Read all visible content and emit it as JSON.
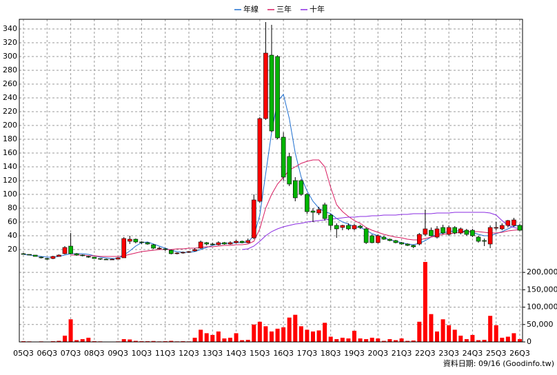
{
  "chart_data": {
    "type": "candlestick",
    "categories": [
      "05Q3",
      null,
      null,
      null,
      "06Q3",
      null,
      null,
      null,
      "07Q3",
      null,
      null,
      null,
      "08Q3",
      null,
      null,
      null,
      "09Q3",
      null,
      null,
      null,
      "10Q3",
      null,
      null,
      null,
      "11Q3",
      null,
      null,
      null,
      "12Q3",
      null,
      null,
      null,
      "13Q3",
      null,
      null,
      null,
      "14Q3",
      null,
      null,
      null,
      "15Q3",
      null,
      null,
      null,
      "16Q3",
      null,
      null,
      null,
      "17Q3",
      null,
      null,
      null,
      "18Q3",
      null,
      null,
      null,
      "19Q3",
      null,
      null,
      null,
      "20Q3",
      null,
      null,
      null,
      "21Q3",
      null,
      null,
      null,
      "22Q3",
      null,
      null,
      null,
      "23Q3",
      null,
      null,
      null,
      "24Q3",
      null,
      null,
      null,
      "25Q3",
      null,
      null,
      null,
      "26Q3"
    ],
    "open": [
      14,
      13,
      12,
      9,
      7,
      7,
      10,
      14,
      25,
      14,
      12,
      10,
      9,
      7,
      6,
      5,
      6,
      8,
      32,
      35,
      31,
      30,
      27,
      22,
      21,
      19,
      14,
      15,
      16,
      18,
      22,
      30,
      28,
      27,
      30,
      28,
      30,
      32,
      30,
      37,
      90,
      210,
      302,
      300,
      183,
      155,
      120,
      120,
      100,
      76,
      73,
      85,
      70,
      55,
      52,
      55,
      50,
      54,
      50,
      40,
      30,
      38,
      35,
      33,
      30,
      28,
      26,
      28,
      42,
      48,
      38,
      52,
      42,
      52,
      44,
      48,
      48,
      38,
      33,
      28,
      52,
      50,
      55,
      55,
      55
    ],
    "high": [
      15,
      13,
      12,
      10,
      8,
      11,
      13,
      25,
      44,
      15,
      13,
      11,
      9,
      7,
      7,
      7,
      9,
      38,
      40,
      36,
      32,
      31,
      28,
      24,
      22,
      20,
      16,
      17,
      18,
      22,
      33,
      31,
      30,
      32,
      31,
      32,
      34,
      33,
      36,
      100,
      212,
      350,
      346,
      302,
      190,
      160,
      125,
      122,
      102,
      80,
      82,
      88,
      72,
      58,
      56,
      58,
      57,
      56,
      52,
      42,
      42,
      40,
      36,
      34,
      31,
      29,
      27,
      44,
      78,
      52,
      54,
      56,
      55,
      54,
      52,
      50,
      50,
      40,
      36,
      55,
      60,
      58,
      63,
      66,
      57
    ],
    "low": [
      13,
      12,
      10,
      7,
      5,
      6,
      10,
      13,
      13,
      11,
      10,
      8,
      7,
      5,
      5,
      5,
      6,
      8,
      28,
      29,
      28,
      27,
      21,
      20,
      18,
      13,
      13,
      14,
      15,
      17,
      21,
      26,
      26,
      26,
      27,
      27,
      29,
      29,
      29,
      35,
      88,
      208,
      190,
      180,
      120,
      112,
      90,
      98,
      72,
      60,
      70,
      62,
      48,
      37,
      48,
      48,
      48,
      50,
      28,
      29,
      29,
      34,
      32,
      29,
      27,
      25,
      22,
      26,
      40,
      39,
      36,
      42,
      40,
      42,
      42,
      40,
      38,
      30,
      25,
      22,
      48,
      48,
      52,
      53,
      47
    ],
    "close": [
      13,
      12,
      10,
      8,
      6,
      10,
      12,
      23,
      14,
      12,
      11,
      9,
      7,
      6,
      5,
      6,
      8,
      36,
      35,
      31,
      30,
      28,
      22,
      22,
      20,
      14,
      15,
      16,
      17,
      20,
      31,
      28,
      27,
      30,
      28,
      30,
      32,
      30,
      33,
      92,
      210,
      305,
      192,
      182,
      125,
      115,
      95,
      100,
      75,
      74,
      78,
      65,
      55,
      50,
      55,
      50,
      55,
      52,
      30,
      30,
      40,
      35,
      33,
      30,
      28,
      26,
      24,
      42,
      50,
      40,
      50,
      44,
      52,
      44,
      50,
      42,
      40,
      32,
      32,
      52,
      52,
      55,
      62,
      63,
      48
    ],
    "up_color": "#ff0000",
    "down_color": "#00b400",
    "series": [
      {
        "name": "年線",
        "color": "#1f6fd0",
        "values": [
          13,
          12,
          11,
          10,
          9,
          9,
          10,
          12,
          14,
          14,
          14,
          13,
          11,
          9,
          8,
          7,
          7,
          12,
          18,
          25,
          30,
          31,
          28,
          25,
          22,
          19,
          17,
          16,
          16,
          17,
          20,
          23,
          26,
          28,
          29,
          29,
          30,
          30,
          31,
          40,
          70,
          130,
          190,
          235,
          245,
          210,
          160,
          125,
          105,
          90,
          80,
          75,
          72,
          65,
          60,
          57,
          53,
          52,
          48,
          43,
          40,
          37,
          34,
          32,
          30,
          28,
          27,
          29,
          33,
          38,
          42,
          44,
          46,
          47,
          47,
          46,
          45,
          42,
          40,
          40,
          43,
          46,
          50,
          54,
          55
        ]
      },
      {
        "name": "三年",
        "color": "#d81b60",
        "values": [
          null,
          null,
          null,
          null,
          null,
          null,
          null,
          null,
          12,
          12,
          12,
          11,
          11,
          10,
          10,
          10,
          10,
          11,
          13,
          15,
          17,
          18,
          19,
          20,
          20,
          20,
          21,
          21,
          22,
          22,
          23,
          24,
          24,
          25,
          26,
          26,
          27,
          27,
          28,
          32,
          50,
          80,
          100,
          115,
          125,
          135,
          140,
          145,
          148,
          150,
          150,
          140,
          110,
          85,
          75,
          68,
          62,
          58,
          52,
          48,
          45,
          42,
          40,
          38,
          37,
          35,
          34,
          34,
          36,
          38,
          40,
          42,
          43,
          44,
          45,
          46,
          46,
          46,
          45,
          44,
          44,
          45,
          47,
          48,
          49
        ]
      },
      {
        "name": "十年",
        "color": "#8a2be2",
        "values": [
          null,
          null,
          null,
          null,
          null,
          null,
          null,
          null,
          null,
          null,
          null,
          null,
          null,
          null,
          null,
          null,
          null,
          null,
          null,
          null,
          null,
          null,
          null,
          null,
          null,
          null,
          null,
          null,
          null,
          null,
          null,
          null,
          null,
          null,
          null,
          null,
          null,
          20,
          21,
          25,
          32,
          40,
          46,
          50,
          53,
          55,
          57,
          58,
          60,
          61,
          62,
          63,
          64,
          65,
          66,
          67,
          67,
          68,
          68,
          69,
          69,
          70,
          70,
          70,
          71,
          71,
          72,
          72,
          72,
          72,
          73,
          73,
          73,
          74,
          74,
          74,
          74,
          74,
          74,
          73,
          70,
          62,
          55,
          52,
          50
        ]
      }
    ],
    "volume": {
      "color": "#ff0000",
      "axis": "y2",
      "values": [
        2000,
        1500,
        1000,
        1500,
        1000,
        2000,
        3000,
        18000,
        65000,
        5000,
        8000,
        12000,
        2000,
        1500,
        1000,
        1000,
        1500,
        8000,
        7000,
        3000,
        2000,
        2000,
        2500,
        1500,
        2000,
        3000,
        1500,
        2000,
        1500,
        12000,
        35000,
        25000,
        20000,
        30000,
        10000,
        12000,
        25000,
        5000,
        6000,
        50000,
        58000,
        45000,
        30000,
        38000,
        42000,
        70000,
        78000,
        45000,
        35000,
        30000,
        33000,
        55000,
        15000,
        8000,
        12000,
        10000,
        32000,
        10000,
        8000,
        12000,
        10000,
        3000,
        8000,
        5000,
        10000,
        3000,
        4000,
        58000,
        230000,
        80000,
        30000,
        65000,
        48000,
        35000,
        18000,
        8000,
        20000,
        5000,
        6000,
        75000,
        48000,
        12000,
        15000,
        25000,
        8000
      ]
    },
    "ylim": [
      4,
      354
    ],
    "yticks": [
      20,
      40,
      60,
      80,
      100,
      120,
      140,
      160,
      180,
      200,
      220,
      240,
      260,
      280,
      300,
      320,
      340
    ],
    "y2lim": [
      0,
      234000
    ],
    "y2ticks": [
      {
        "value": 0,
        "label": "0"
      },
      {
        "value": 50000,
        "label": "50,000"
      },
      {
        "value": 100000,
        "label": "100,000"
      },
      {
        "value": 150000,
        "label": "150,000"
      },
      {
        "value": 200000,
        "label": "200,000"
      }
    ],
    "grid": true,
    "footer": "資料日期: 09/16 (Goodinfo.tw)"
  }
}
